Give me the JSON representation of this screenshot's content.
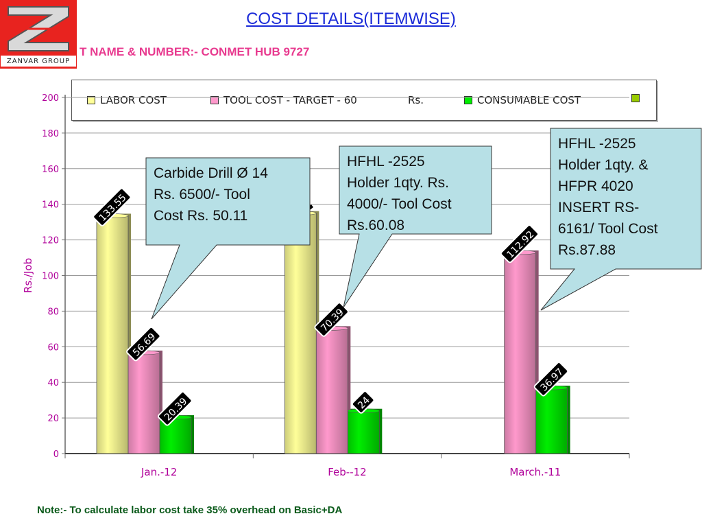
{
  "logo": {
    "text": "ZANVAR GROUP",
    "letter": "Z"
  },
  "header": {
    "title": "COST DETAILS(ITEMWISE)",
    "subtitle": "T NAME & NUMBER:- CONMET HUB  9727"
  },
  "legend": {
    "items": [
      {
        "label": "LABOR COST",
        "color": "#ffff99"
      },
      {
        "label": "TOOL COST - TARGET - 60",
        "color": "#ff99cc"
      },
      {
        "label": "Rs.",
        "color": ""
      },
      {
        "label": "CONSUMABLE COST",
        "color": "#00ee00"
      },
      {
        "label": "",
        "color": "#99cc00"
      }
    ]
  },
  "chart_data": {
    "type": "bar",
    "categories": [
      "Jan.-12",
      "Feb--12",
      "March.-11"
    ],
    "series": [
      {
        "name": "LABOR COST",
        "color": "#ffff99",
        "values": [
          133.55,
          135,
          null
        ],
        "labels": [
          "133.55",
          "",
          ""
        ]
      },
      {
        "name": "TOOL COST - TARGET - 60 Rs.",
        "color": "#ff99cc",
        "values": [
          56.69,
          70.39,
          112.92
        ],
        "labels": [
          "56.69",
          "70.39",
          "112.92"
        ]
      },
      {
        "name": "CONSUMABLE COST",
        "color": "#00ee00",
        "values": [
          20.39,
          24,
          36.97
        ],
        "labels": [
          "20.39",
          "24",
          "36.97"
        ]
      }
    ],
    "ylabel": "Rs./Job",
    "ylim": [
      0,
      200
    ],
    "yticks": [
      0,
      20,
      40,
      60,
      80,
      100,
      120,
      140,
      160,
      180,
      200
    ],
    "grid": true,
    "legend_position": "top"
  },
  "callouts": [
    {
      "lines": [
        "Carbide Drill Ø 14",
        "Rs. 6500/- Tool",
        "Cost Rs. 50.11"
      ]
    },
    {
      "lines": [
        "HFHL -2525",
        "Holder 1qty. Rs.",
        "4000/- Tool Cost",
        "Rs.60.08"
      ]
    },
    {
      "lines": [
        "HFHL -2525",
        "Holder 1qty. &",
        "HFPR 4020",
        "INSERT RS-",
        "6161/ Tool Cost",
        "Rs.87.88"
      ]
    }
  ],
  "note": "Note:- To calculate labor cost take 35% overhead on Basic+DA"
}
